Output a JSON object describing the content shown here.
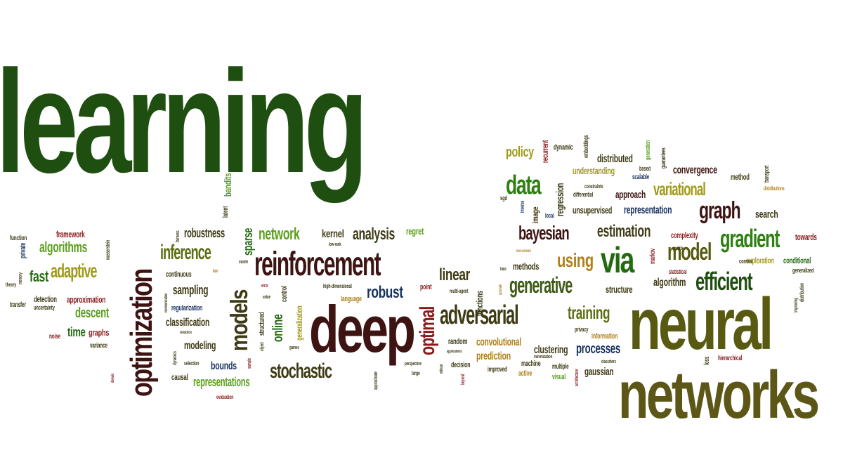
{
  "cloud": {
    "main": {
      "learning": "learning",
      "neural": "neural",
      "networks": "networks",
      "deep": "deep",
      "optimization": "optimization",
      "reinforcement": "reinforcement",
      "adversarial": "adversarial",
      "via": "via",
      "models": "models",
      "stochastic": "stochastic",
      "generative": "generative",
      "efficient": "efficient",
      "gradient": "gradient",
      "graph": "graph",
      "model": "model",
      "variational": "variational",
      "bayesian": "bayesian",
      "data": "data",
      "inference": "inference",
      "adaptive": "adaptive",
      "algorithms": "algorithms",
      "optimal": "optimal",
      "network": "network",
      "analysis": "analysis",
      "training": "training",
      "estimation": "estimation",
      "robust": "robust",
      "using": "using",
      "linear": "linear",
      "policy": "policy",
      "online": "online",
      "time": "time",
      "descent": "descent",
      "fast": "fast",
      "processes": "processes",
      "representations": "representations",
      "sparse": "sparse",
      "robustness": "robustness",
      "sampling": "sampling",
      "classification": "classification",
      "modeling": "modeling",
      "bounds": "bounds",
      "kernel": "kernel",
      "convergence": "convergence",
      "representation": "representation",
      "unsupervised": "unsupervised",
      "understanding": "understanding",
      "distributed": "distributed",
      "approach": "approach",
      "search": "search",
      "methods": "methods",
      "algorithm": "algorithm",
      "structure": "structure",
      "clustering": "clustering",
      "convolutional": "convolutional",
      "prediction": "prediction",
      "gaussian": "gaussian",
      "regression": "regression",
      "image": "image",
      "framework": "framework",
      "regret": "regret",
      "bandits": "bandits",
      "approximation": "approximation",
      "detection": "detection",
      "graphs": "graphs",
      "complexity": "complexity",
      "towards": "towards",
      "exploration": "exploration",
      "conditional": "conditional",
      "random": "random",
      "functions": "functions",
      "language": "language",
      "continuous": "continuous",
      "regularization": "regularization",
      "causal": "causal",
      "generalization": "generalization",
      "control": "control",
      "structured": "structured",
      "latent": "latent",
      "recurrent": "recurrent",
      "dynamic": "dynamic",
      "method": "method",
      "scalable": "scalable",
      "markov": "markov",
      "hierarchical": "hierarchical",
      "loss": "loss",
      "information": "information",
      "privacy": "privacy",
      "multiple": "multiple",
      "visual": "visual",
      "active": "active",
      "machine": "machine",
      "decision": "decision",
      "improved": "improved",
      "point": "point",
      "embeddings": "embeddings",
      "based": "based",
      "guarantees": "guarantees",
      "generation": "generation",
      "transport": "transport",
      "distributions": "distributions",
      "constraints": "constraints",
      "differential": "differential",
      "local": "local",
      "inverse": "inverse",
      "sgd": "sgd",
      "matrix": "matrix",
      "convex": "convex",
      "statistical": "statistical",
      "generalized": "generalized",
      "distribution": "distribution",
      "function": "function",
      "private": "private",
      "memory": "memory",
      "theory": "theory",
      "transfer": "transfer",
      "uncertainty": "uncertainty",
      "noise": "noise",
      "variance": "variance",
      "wasserstein": "wasserstein",
      "fairness": "fairness",
      "law": "law",
      "monte": "monte",
      "error": "error",
      "value": "value",
      "low_rank": "low-rank",
      "high_dimensional": "high-dimensional",
      "multi_agent": "multi-agent",
      "communication": "communication",
      "reduction": "reduction",
      "dynamics": "dynamics",
      "selection": "selection",
      "sample": "sample",
      "object": "object",
      "games": "games",
      "approximate": "approximate",
      "domain": "domain",
      "evaluation": "evaluation",
      "perspective": "perspective",
      "large": "large",
      "applications": "applications",
      "without": "without",
      "beyond": "beyond",
      "non_convex": "non-convex",
      "bias": "bias",
      "accurate": "accurate",
      "minimization": "minimization",
      "architecture": "architecture",
      "classifiers": "classifiers",
      "improving": "improving"
    }
  }
}
